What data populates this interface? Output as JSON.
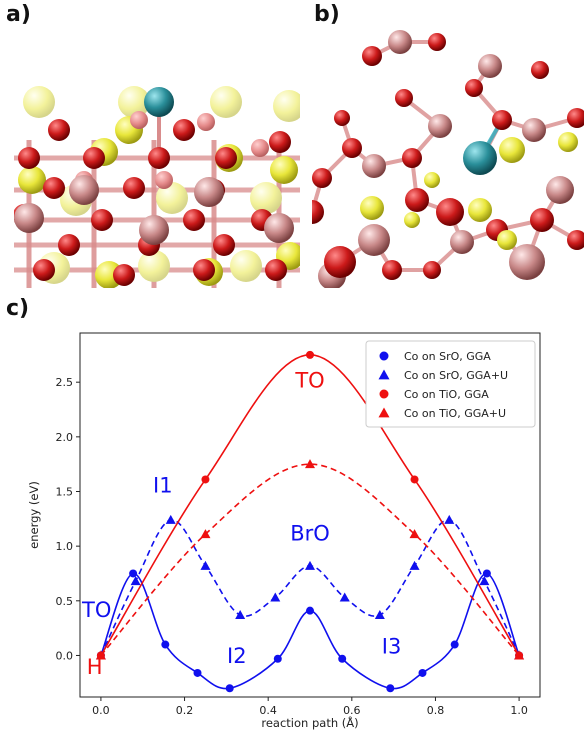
{
  "panels": {
    "a_label": "a)",
    "b_label": "b)",
    "c_label": "c)"
  },
  "atom_colors": {
    "Sr": "#e8e63a",
    "O": "#cc1a1a",
    "Ti": "#d9a0a0",
    "Co": "#2a8f9a",
    "bond": "#d98c8c"
  },
  "chart_data": {
    "type": "line",
    "title": "",
    "xlabel": "reaction path (Å)",
    "ylabel": "energy (eV)",
    "xlim": [
      -0.05,
      1.05
    ],
    "ylim": [
      -0.38,
      2.95
    ],
    "xticks": [
      "0.0",
      "0.2",
      "0.4",
      "0.6",
      "0.8",
      "1.0"
    ],
    "yticks": [
      "0.0",
      "0.5",
      "1.0",
      "1.5",
      "2.0",
      "2.5"
    ],
    "grid": false,
    "legend_position": "top-right",
    "series": [
      {
        "name": "Co on SrO, GGA",
        "color": "#1010ee",
        "marker": "circle",
        "linestyle": "solid",
        "points": [
          [
            0.0,
            0.0
          ],
          [
            0.077,
            0.75
          ],
          [
            0.154,
            0.1
          ],
          [
            0.231,
            -0.16
          ],
          [
            0.308,
            -0.3
          ],
          [
            0.423,
            -0.03
          ],
          [
            0.5,
            0.41
          ],
          [
            0.577,
            -0.03
          ],
          [
            0.692,
            -0.3
          ],
          [
            0.769,
            -0.16
          ],
          [
            0.846,
            0.1
          ],
          [
            0.923,
            0.75
          ],
          [
            1.0,
            0.0
          ]
        ]
      },
      {
        "name": "Co on SrO, GGA+U",
        "color": "#1010ee",
        "marker": "triangle",
        "linestyle": "dashed",
        "points": [
          [
            0.0,
            0.0
          ],
          [
            0.083,
            0.68
          ],
          [
            0.167,
            1.24
          ],
          [
            0.25,
            0.82
          ],
          [
            0.333,
            0.37
          ],
          [
            0.417,
            0.53
          ],
          [
            0.5,
            0.82
          ],
          [
            0.583,
            0.53
          ],
          [
            0.667,
            0.37
          ],
          [
            0.75,
            0.82
          ],
          [
            0.833,
            1.24
          ],
          [
            0.917,
            0.68
          ],
          [
            1.0,
            0.0
          ]
        ]
      },
      {
        "name": "Co on TiO, GGA",
        "color": "#ee1010",
        "marker": "circle",
        "linestyle": "solid",
        "points": [
          [
            0.0,
            0.0
          ],
          [
            0.25,
            1.61
          ],
          [
            0.5,
            2.75
          ],
          [
            0.75,
            1.61
          ],
          [
            1.0,
            0.0
          ]
        ]
      },
      {
        "name": "Co on TiO, GGA+U",
        "color": "#ee1010",
        "marker": "triangle",
        "linestyle": "dashed",
        "points": [
          [
            0.0,
            0.0
          ],
          [
            0.25,
            1.11
          ],
          [
            0.5,
            1.75
          ],
          [
            0.75,
            1.11
          ],
          [
            1.0,
            0.0
          ]
        ]
      }
    ],
    "annotations": [
      {
        "text": "TO",
        "x": 0.5,
        "y": 2.45,
        "color": "#ee1010"
      },
      {
        "text": "I1",
        "x": 0.148,
        "y": 1.49,
        "color": "#1010ee"
      },
      {
        "text": "BrO",
        "x": 0.5,
        "y": 1.05,
        "color": "#1010ee"
      },
      {
        "text": "TO",
        "x": -0.01,
        "y": 0.35,
        "color": "#1010ee"
      },
      {
        "text": "I2",
        "x": 0.325,
        "y": -0.07,
        "color": "#1010ee"
      },
      {
        "text": "I3",
        "x": 0.695,
        "y": 0.02,
        "color": "#1010ee"
      },
      {
        "text": "H",
        "x": -0.015,
        "y": -0.17,
        "color": "#ee1010"
      }
    ]
  }
}
